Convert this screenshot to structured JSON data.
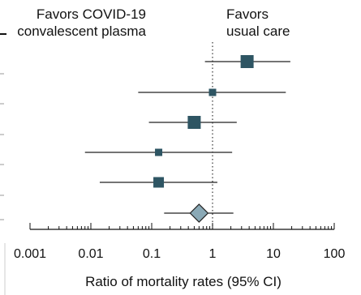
{
  "chart_data": {
    "type": "forest",
    "x_scale": "log",
    "xlim": [
      0.001,
      100
    ],
    "xticks": [
      0.001,
      0.01,
      0.1,
      1,
      10,
      100
    ],
    "xtick_labels": [
      "0.001",
      "0.01",
      "0.1",
      "1",
      "10",
      "100"
    ],
    "xlabel": "Ratio of mortality rates (95% CI)",
    "reference_line": 1,
    "favors_left": [
      "Favors COVID-19",
      "convalescent plasma"
    ],
    "favors_right": [
      "Favors",
      "usual care"
    ],
    "studies": [
      {
        "estimate": 3.7,
        "ci_low": 0.75,
        "ci_high": 19.0,
        "weight": "large"
      },
      {
        "estimate": 1.0,
        "ci_low": 0.06,
        "ci_high": 16.0,
        "weight": "small"
      },
      {
        "estimate": 0.5,
        "ci_low": 0.09,
        "ci_high": 2.5,
        "weight": "large"
      },
      {
        "estimate": 0.13,
        "ci_low": 0.008,
        "ci_high": 2.1,
        "weight": "small"
      },
      {
        "estimate": 0.13,
        "ci_low": 0.014,
        "ci_high": 1.2,
        "weight": "medium"
      }
    ],
    "pooled": {
      "estimate": 0.6,
      "ci_low": 0.16,
      "ci_high": 2.2
    },
    "colors": {
      "square": "#2e5563",
      "diamond": "#8aa9b6",
      "line": "#222222"
    }
  }
}
